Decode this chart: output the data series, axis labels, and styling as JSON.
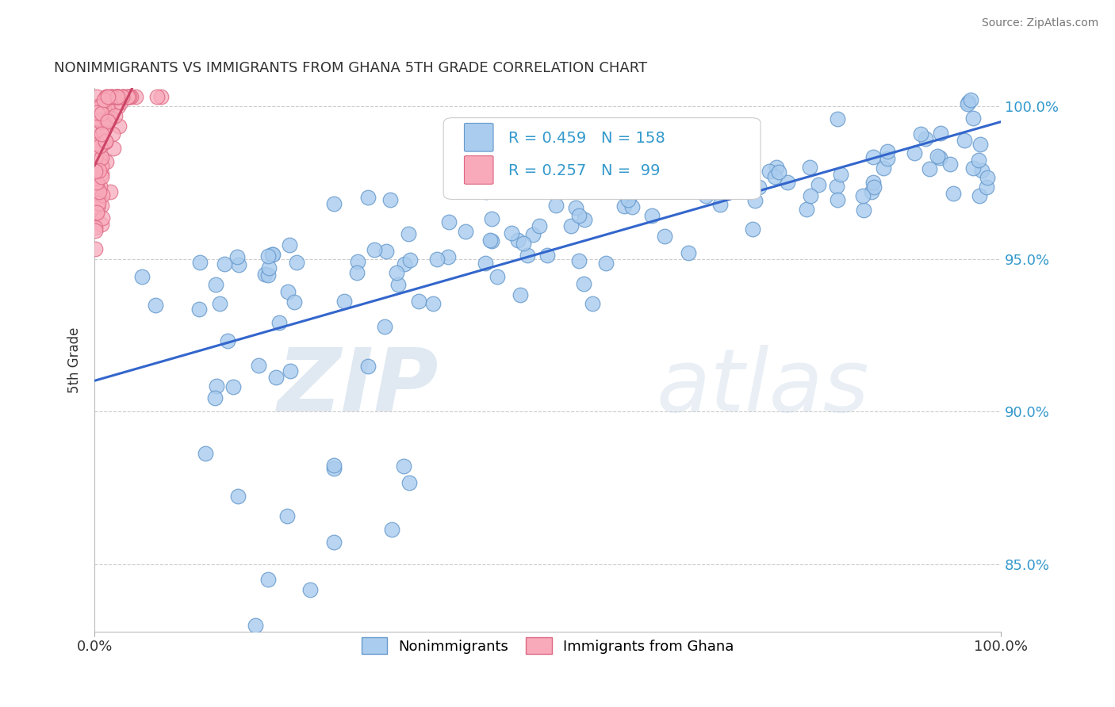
{
  "title": "NONIMMIGRANTS VS IMMIGRANTS FROM GHANA 5TH GRADE CORRELATION CHART",
  "source": "Source: ZipAtlas.com",
  "ylabel": "5th Grade",
  "xlim": [
    0.0,
    1.0
  ],
  "ylim": [
    0.828,
    1.006
  ],
  "yticks": [
    0.85,
    0.9,
    0.95,
    1.0
  ],
  "ytick_labels": [
    "85.0%",
    "90.0%",
    "95.0%",
    "100.0%"
  ],
  "xtick_labels": [
    "0.0%",
    "100.0%"
  ],
  "blue_R": 0.459,
  "blue_N": 158,
  "pink_R": 0.257,
  "pink_N": 99,
  "blue_color": "#aaccee",
  "blue_edge": "#6699cc",
  "pink_color": "#f8aabb",
  "pink_edge": "#dd6680",
  "blue_line_color": "#3366cc",
  "pink_line_color": "#cc4466",
  "legend_blue_label": "Nonimmigrants",
  "legend_pink_label": "Immigrants from Ghana",
  "watermark_zip": "ZIP",
  "watermark_atlas": "atlas",
  "title_color": "#333333",
  "axis_label_color": "#333333",
  "tick_color": "#333333",
  "source_color": "#777777",
  "grid_color": "#cccccc",
  "background_color": "#ffffff",
  "right_ytick_color": "#3399cc",
  "legend_box_color": "#f0f0f8"
}
